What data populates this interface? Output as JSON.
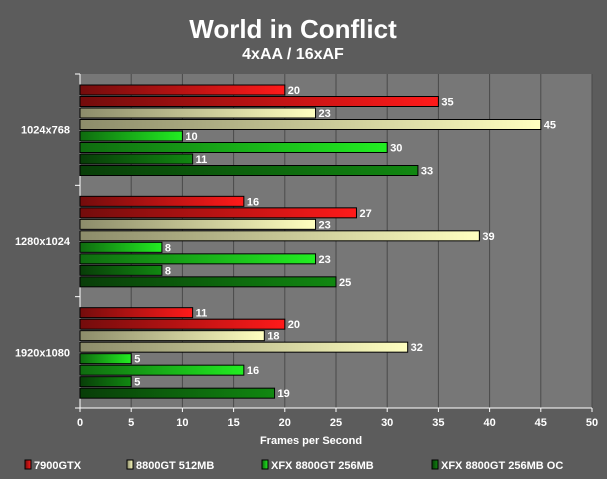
{
  "chart_data": {
    "type": "bar",
    "orientation": "horizontal",
    "title": "World in Conflict",
    "subtitle": "4xAA / 16xAF",
    "xlabel": "Frames per Second",
    "ylabel": "",
    "xlim": [
      0,
      50
    ],
    "xticks": [
      0,
      5,
      10,
      15,
      20,
      25,
      30,
      35,
      40,
      45,
      50
    ],
    "categories": [
      "1024x768",
      "1280x1024",
      "1920x1080"
    ],
    "grid": true,
    "legend_position": "bottom",
    "series": [
      {
        "name": "7900GTX",
        "color": "#ff1a1a",
        "bars": [
          [
            20,
            35
          ],
          [
            16,
            27
          ],
          [
            11,
            20
          ]
        ]
      },
      {
        "name": "8800GT 512MB",
        "color": "#ffffc0",
        "bars": [
          [
            23,
            45
          ],
          [
            23,
            39
          ],
          [
            18,
            32
          ]
        ]
      },
      {
        "name": "XFX 8800GT 256MB",
        "color": "#22ee22",
        "bars": [
          [
            10,
            30
          ],
          [
            8,
            23
          ],
          [
            5,
            16
          ]
        ]
      },
      {
        "name": "XFX 8800GT 256MB OC",
        "color": "#118811",
        "bars": [
          [
            11,
            33
          ],
          [
            8,
            25
          ],
          [
            5,
            19
          ]
        ]
      }
    ]
  }
}
